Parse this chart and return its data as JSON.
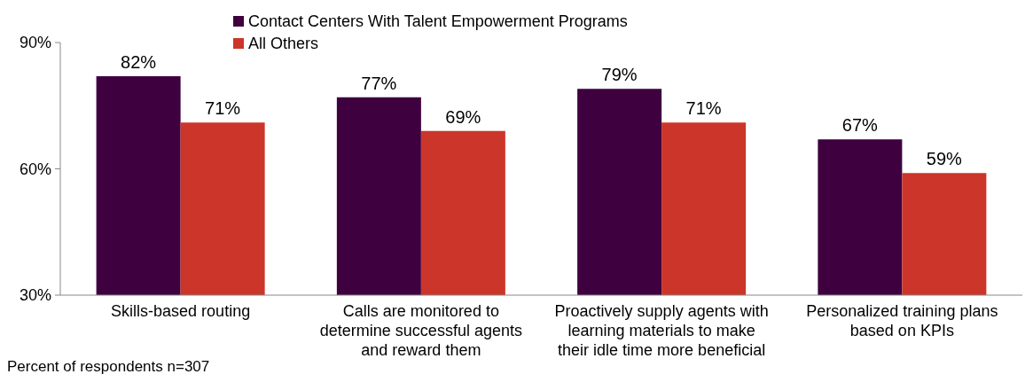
{
  "chart_data": {
    "type": "bar",
    "categories": [
      "Skills-based routing",
      "Calls are monitored to\ndetermine successful agents\nand reward them",
      "Proactively supply agents with\nlearning materials to make\ntheir idle time more beneficial",
      "Personalized training plans\nbased on KPIs"
    ],
    "series": [
      {
        "name": "Contact Centers With Talent Empowerment Programs",
        "color": "#3f0040",
        "values": [
          82,
          77,
          79,
          67
        ],
        "value_labels": [
          "82%",
          "77%",
          "79%",
          "67%"
        ]
      },
      {
        "name": "All Others",
        "color": "#cc3529",
        "values": [
          71,
          69,
          71,
          59
        ],
        "value_labels": [
          "71%",
          "69%",
          "71%",
          "59%"
        ]
      }
    ],
    "ylim": [
      30,
      90
    ],
    "yticks": [
      {
        "value": 30,
        "label": "30%"
      },
      {
        "value": 60,
        "label": "60%"
      },
      {
        "value": 90,
        "label": "90%"
      }
    ],
    "legend": "top",
    "grid": false,
    "annotations": [
      "Percent of respondents n=307"
    ]
  }
}
